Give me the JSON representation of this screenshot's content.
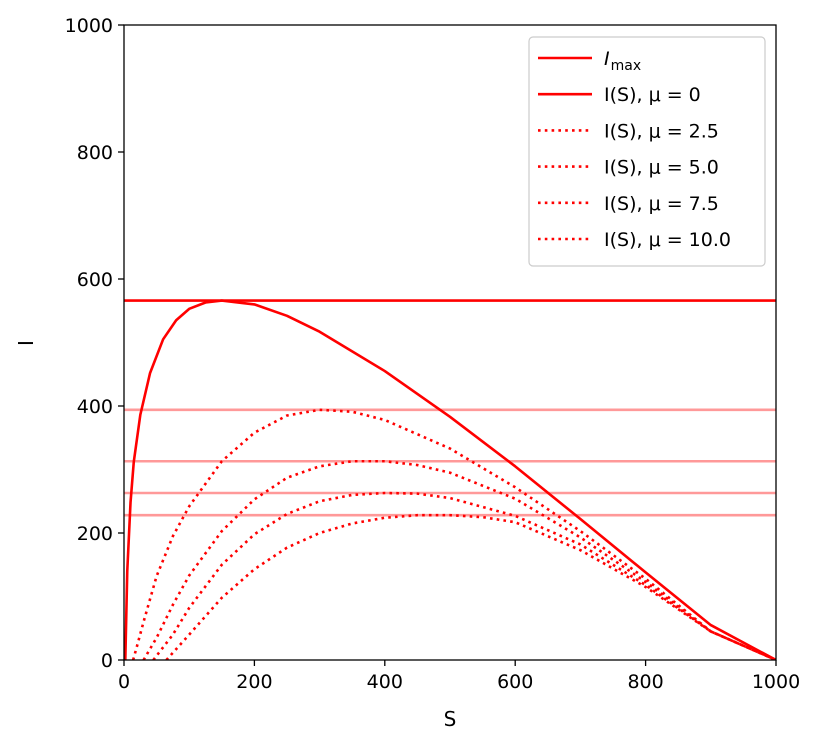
{
  "chart_data": {
    "type": "line",
    "title": "",
    "xlabel": "S",
    "ylabel": "I",
    "xlim": [
      0,
      1000
    ],
    "ylim": [
      0,
      1000
    ],
    "xticks": [
      0,
      200,
      400,
      600,
      800,
      1000
    ],
    "yticks": [
      0,
      200,
      400,
      600,
      800,
      1000
    ],
    "grid": false,
    "legend_position": "top-right",
    "color": "#ff0000",
    "legend": [
      {
        "label_main": "I",
        "label_sub": "max",
        "style": "solid"
      },
      {
        "label_main": "I(S), μ = 0",
        "label_sub": "",
        "style": "solid"
      },
      {
        "label_main": "I(S), μ = 2.5",
        "label_sub": "",
        "style": "dotted"
      },
      {
        "label_main": "I(S), μ = 5.0",
        "label_sub": "",
        "style": "dotted"
      },
      {
        "label_main": "I(S), μ = 7.5",
        "label_sub": "",
        "style": "dotted"
      },
      {
        "label_main": "I(S), μ = 10.0",
        "label_sub": "",
        "style": "dotted"
      }
    ],
    "horizontal_lines": [
      {
        "y": 566,
        "style": "solid",
        "alpha": 1.0
      },
      {
        "y": 394,
        "style": "solid",
        "alpha": 0.4
      },
      {
        "y": 313,
        "style": "solid",
        "alpha": 0.4
      },
      {
        "y": 263,
        "style": "solid",
        "alpha": 0.4
      },
      {
        "y": 228,
        "style": "solid",
        "alpha": 0.4
      }
    ],
    "series": [
      {
        "mu": 0,
        "style": "solid",
        "x": [
          2,
          5,
          10,
          15,
          25,
          40,
          60,
          80,
          100,
          125,
          150,
          200,
          250,
          300,
          400,
          500,
          600,
          700,
          800,
          900,
          1000
        ],
        "y": [
          0,
          140,
          248,
          312,
          386,
          452,
          505,
          535,
          553,
          563,
          566,
          560,
          542,
          517,
          455,
          383,
          305,
          222,
          138,
          55,
          0
        ]
      },
      {
        "mu": 2.5,
        "style": "dotted",
        "x": [
          14,
          20,
          30,
          50,
          75,
          100,
          150,
          200,
          250,
          300,
          350,
          400,
          500,
          600,
          700,
          800,
          900,
          1000
        ],
        "y": [
          0,
          22,
          60,
          132,
          195,
          242,
          313,
          358,
          385,
          394,
          391,
          378,
          333,
          272,
          203,
          128,
          45,
          0
        ]
      },
      {
        "mu": 5.0,
        "style": "dotted",
        "x": [
          30,
          50,
          75,
          100,
          150,
          200,
          250,
          300,
          350,
          400,
          450,
          500,
          600,
          700,
          800,
          900,
          1000
        ],
        "y": [
          0,
          35,
          87,
          133,
          203,
          253,
          287,
          305,
          313,
          313,
          307,
          295,
          254,
          193,
          123,
          45,
          0
        ]
      },
      {
        "mu": 7.5,
        "style": "dotted",
        "x": [
          45,
          75,
          100,
          150,
          200,
          250,
          300,
          350,
          400,
          450,
          500,
          600,
          700,
          800,
          900,
          1000
        ],
        "y": [
          0,
          40,
          82,
          150,
          198,
          230,
          250,
          260,
          263,
          262,
          255,
          227,
          182,
          118,
          45,
          0
        ]
      },
      {
        "mu": 10.0,
        "style": "dotted",
        "x": [
          65,
          100,
          150,
          200,
          250,
          300,
          350,
          400,
          450,
          500,
          550,
          600,
          700,
          800,
          900,
          1000
        ],
        "y": [
          0,
          40,
          98,
          143,
          177,
          200,
          215,
          224,
          228,
          228,
          225,
          217,
          173,
          115,
          45,
          0
        ]
      }
    ]
  }
}
